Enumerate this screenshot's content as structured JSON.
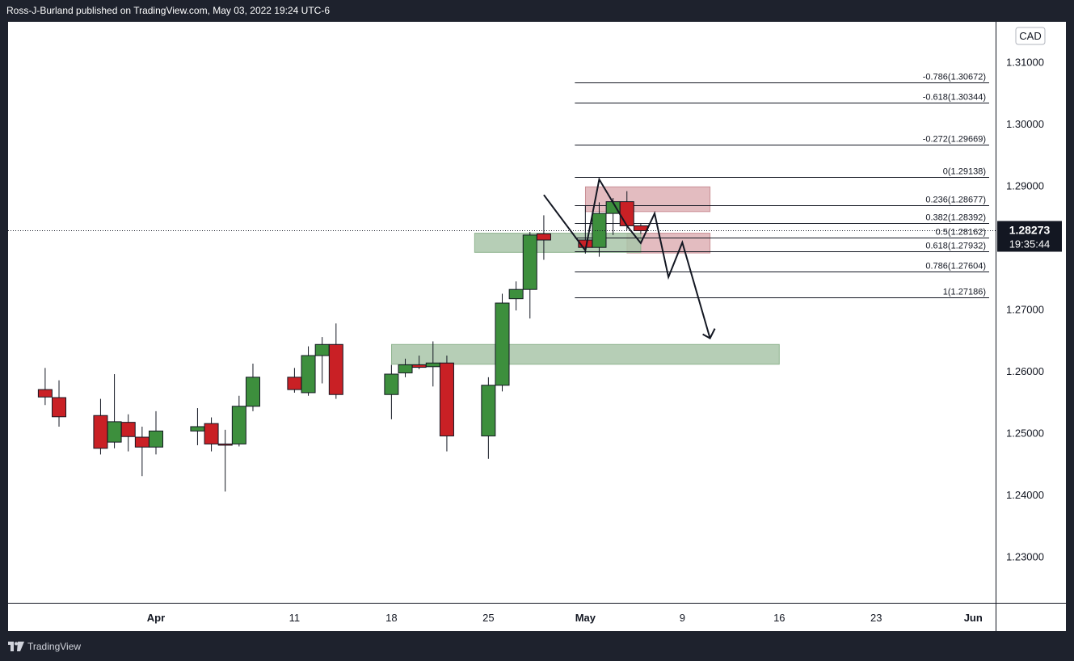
{
  "header": {
    "title": "Ross-J-Burland published on TradingView.com, May 03, 2022 19:24 UTC-6"
  },
  "footer": {
    "brand": "TradingView"
  },
  "colors": {
    "up": "#3d8f3d",
    "down": "#c92025",
    "supply_zone": "#d9a6ab",
    "demand_zone": "#a9c6a9",
    "price_tag_bg": "#131722"
  },
  "price_tag": {
    "price": "1.28273",
    "countdown": "19:35:44",
    "value": 1.28273
  },
  "chart_data": {
    "type": "candlestick",
    "currency": "CAD",
    "ylim": [
      1.2225,
      1.3165
    ],
    "y_ticks": [
      {
        "value": 1.31,
        "label": "1.31000"
      },
      {
        "value": 1.3,
        "label": "1.30000"
      },
      {
        "value": 1.29,
        "label": "1.29000"
      },
      {
        "value": 1.27,
        "label": "1.27000"
      },
      {
        "value": 1.26,
        "label": "1.26000"
      },
      {
        "value": 1.25,
        "label": "1.25000"
      },
      {
        "value": 1.24,
        "label": "1.24000"
      },
      {
        "value": 1.23,
        "label": "1.23000"
      }
    ],
    "x_ticks": [
      {
        "date": "2022-04-01",
        "label": "Apr",
        "bold": true
      },
      {
        "date": "2022-04-11",
        "label": "11",
        "bold": false
      },
      {
        "date": "2022-04-18",
        "label": "18",
        "bold": false
      },
      {
        "date": "2022-04-25",
        "label": "25",
        "bold": false
      },
      {
        "date": "2022-05-02",
        "label": "May",
        "bold": true
      },
      {
        "date": "2022-05-09",
        "label": "9",
        "bold": false
      },
      {
        "date": "2022-05-16",
        "label": "16",
        "bold": false
      },
      {
        "date": "2022-05-23",
        "label": "23",
        "bold": false
      },
      {
        "date": "2022-05-30",
        "label": "Jun",
        "bold": true
      }
    ],
    "candles": [
      {
        "date": "2022-03-24",
        "o": 1.257,
        "h": 1.2605,
        "l": 1.2545,
        "c": 1.2558
      },
      {
        "date": "2022-03-25",
        "o": 1.2557,
        "h": 1.2585,
        "l": 1.251,
        "c": 1.2526
      },
      {
        "date": "2022-03-28",
        "o": 1.2528,
        "h": 1.2555,
        "l": 1.2465,
        "c": 1.2475
      },
      {
        "date": "2022-03-29",
        "o": 1.2485,
        "h": 1.2595,
        "l": 1.2475,
        "c": 1.2518
      },
      {
        "date": "2022-03-30",
        "o": 1.2517,
        "h": 1.253,
        "l": 1.247,
        "c": 1.2494
      },
      {
        "date": "2022-03-31",
        "o": 1.2493,
        "h": 1.251,
        "l": 1.243,
        "c": 1.2477
      },
      {
        "date": "2022-04-01",
        "o": 1.2477,
        "h": 1.2535,
        "l": 1.2465,
        "c": 1.2503
      },
      {
        "date": "2022-04-04",
        "o": 1.2503,
        "h": 1.254,
        "l": 1.248,
        "c": 1.251
      },
      {
        "date": "2022-04-05",
        "o": 1.2515,
        "h": 1.2525,
        "l": 1.247,
        "c": 1.2482
      },
      {
        "date": "2022-04-06",
        "o": 1.2482,
        "h": 1.2505,
        "l": 1.2405,
        "c": 1.248
      },
      {
        "date": "2022-04-07",
        "o": 1.2482,
        "h": 1.256,
        "l": 1.2478,
        "c": 1.2543
      },
      {
        "date": "2022-04-08",
        "o": 1.2543,
        "h": 1.2612,
        "l": 1.2535,
        "c": 1.259
      },
      {
        "date": "2022-04-11",
        "o": 1.259,
        "h": 1.2605,
        "l": 1.2565,
        "c": 1.257
      },
      {
        "date": "2022-04-12",
        "o": 1.2565,
        "h": 1.264,
        "l": 1.256,
        "c": 1.2625
      },
      {
        "date": "2022-04-13",
        "o": 1.2625,
        "h": 1.2655,
        "l": 1.258,
        "c": 1.2643
      },
      {
        "date": "2022-04-14",
        "o": 1.2643,
        "h": 1.2677,
        "l": 1.2555,
        "c": 1.2562
      },
      {
        "date": "2022-04-18",
        "o": 1.2562,
        "h": 1.261,
        "l": 1.2522,
        "c": 1.2595
      },
      {
        "date": "2022-04-19",
        "o": 1.2597,
        "h": 1.262,
        "l": 1.259,
        "c": 1.261
      },
      {
        "date": "2022-04-20",
        "o": 1.261,
        "h": 1.2625,
        "l": 1.2603,
        "c": 1.2606
      },
      {
        "date": "2022-04-21",
        "o": 1.2607,
        "h": 1.2648,
        "l": 1.2575,
        "c": 1.2613
      },
      {
        "date": "2022-04-22",
        "o": 1.2613,
        "h": 1.2625,
        "l": 1.247,
        "c": 1.2495
      },
      {
        "date": "2022-04-25",
        "o": 1.2495,
        "h": 1.259,
        "l": 1.2458,
        "c": 1.2577
      },
      {
        "date": "2022-04-26",
        "o": 1.2577,
        "h": 1.2725,
        "l": 1.2567,
        "c": 1.271
      },
      {
        "date": "2022-04-27",
        "o": 1.2717,
        "h": 1.2745,
        "l": 1.2698,
        "c": 1.2732
      },
      {
        "date": "2022-04-28",
        "o": 1.2732,
        "h": 1.2825,
        "l": 1.2685,
        "c": 1.282
      },
      {
        "date": "2022-04-29",
        "o": 1.2822,
        "h": 1.2852,
        "l": 1.278,
        "c": 1.2812
      },
      {
        "date": "2022-05-02",
        "o": 1.2812,
        "h": 1.2868,
        "l": 1.279,
        "c": 1.28
      },
      {
        "date": "2022-05-03",
        "o": 1.28,
        "h": 1.2873,
        "l": 1.2785,
        "c": 1.2855
      },
      {
        "date": "2022-05-04",
        "o": 1.2855,
        "h": 1.288,
        "l": 1.282,
        "c": 1.2874
      },
      {
        "date": "2022-05-05",
        "o": 1.2874,
        "h": 1.2891,
        "l": 1.2828,
        "c": 1.2835
      },
      {
        "date": "2022-05-06",
        "o": 1.2835,
        "h": 1.2838,
        "l": 1.2822,
        "c": 1.2827
      }
    ],
    "fibonacci": {
      "from_date": "2022-05-02",
      "to_date": "2022-06-05",
      "levels": [
        {
          "label": "-0.786(1.30672)",
          "value": 1.30672
        },
        {
          "label": "-0.618(1.30344)",
          "value": 1.30344
        },
        {
          "label": "-0.272(1.29669)",
          "value": 1.29669
        },
        {
          "label": "0(1.29138)",
          "value": 1.29138
        },
        {
          "label": "0.236(1.28677)",
          "value": 1.28677
        },
        {
          "label": "0.382(1.28392)",
          "value": 1.28392
        },
        {
          "label": "0.5(1.28162)",
          "value": 1.28162
        },
        {
          "label": "0.618(1.27932)",
          "value": 1.27932
        },
        {
          "label": "0.786(1.27604)",
          "value": 1.27604
        },
        {
          "label": "1(1.27186)",
          "value": 1.27186
        }
      ]
    },
    "zones": [
      {
        "kind": "supply",
        "from": "2022-05-03",
        "to": "2022-05-11",
        "y1": 1.2858,
        "y2": 1.2898
      },
      {
        "kind": "supply",
        "from": "2022-05-06",
        "to": "2022-05-11",
        "y1": 1.2791,
        "y2": 1.2823
      },
      {
        "kind": "demand",
        "from": "2022-04-25",
        "to": "2022-05-06",
        "y1": 1.2792,
        "y2": 1.2823
      },
      {
        "kind": "demand",
        "from": "2022-04-19",
        "to": "2022-05-16",
        "y1": 1.2611,
        "y2": 1.2643
      }
    ],
    "projection_path": [
      {
        "date": "2022-04-29",
        "price": 1.2885
      },
      {
        "date": "2022-05-02",
        "price": 1.2795
      },
      {
        "date": "2022-05-03",
        "price": 1.291
      },
      {
        "date": "2022-05-05",
        "price": 1.2835
      },
      {
        "date": "2022-05-06",
        "price": 1.2807
      },
      {
        "date": "2022-05-07",
        "price": 1.2855
      },
      {
        "date": "2022-05-08",
        "price": 1.2752
      },
      {
        "date": "2022-05-09",
        "price": 1.2808
      },
      {
        "date": "2022-05-11",
        "price": 1.2653
      }
    ]
  }
}
